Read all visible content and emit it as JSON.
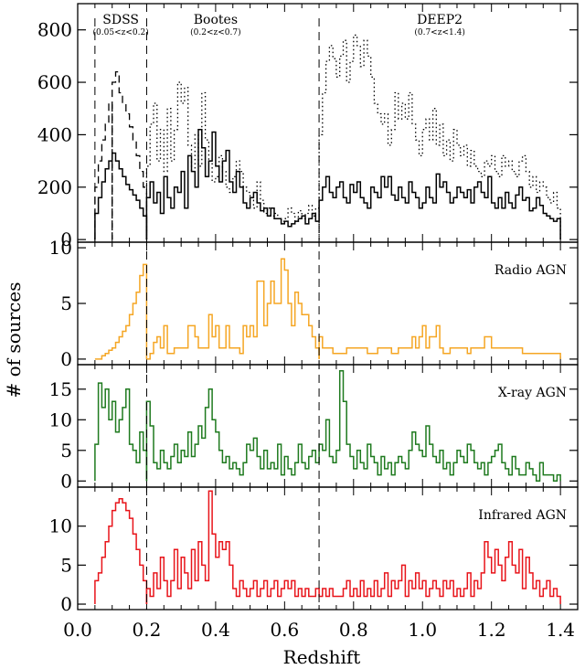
{
  "chart_data": {
    "type": "histogram-stack",
    "xlabel": "Redshift",
    "ylabel": "# of sources",
    "x_range": [
      0.0,
      1.45
    ],
    "x_ticks": [
      "0.0",
      "0.2",
      "0.4",
      "0.6",
      "0.8",
      "1.0",
      "1.2",
      "1.4"
    ],
    "x_tick_values": [
      0.0,
      0.2,
      0.4,
      0.6,
      0.8,
      1.0,
      1.2,
      1.4
    ],
    "bin_width": 0.01,
    "dividers": [
      0.2,
      0.7
    ],
    "regions": [
      {
        "name": "SDSS",
        "range": "(0.05<z<0.2)",
        "x_center": 0.125
      },
      {
        "name": "Bootes",
        "range": "(0.2<z<0.7)",
        "x_center": 0.4
      },
      {
        "name": "DEEP2",
        "range": "(0.7<z<1.4)",
        "x_center": 1.05
      }
    ],
    "panels": [
      {
        "id": "all",
        "label": "",
        "ylim": [
          -10,
          900
        ],
        "y_ticks": [
          0,
          200,
          400,
          600,
          800
        ],
        "series": [
          {
            "style": "dashed",
            "color": "#000000",
            "bins": [
              {
                "x0": 0.05,
                "x1": 0.1,
                "v": [
                  200,
                  300,
                  380,
                  440,
                  520
                ]
              },
              {
                "x0": 0.1,
                "x1": 0.2,
                "v": [
                  600,
                  640,
                  560,
                  520,
                  480,
                  430,
                  380,
                  320,
                  260,
                  200
                ]
              }
            ]
          },
          {
            "style": "dotted",
            "color": "#000000",
            "bins": [
              {
                "x0": 0.2,
                "x1": 0.7,
                "v": [
                  280,
                  440,
                  520,
                  300,
                  420,
                  260,
                  500,
                  300,
                  420,
                  600,
                  520,
                  580,
                  360,
                  260,
                  400,
                  280,
                  560,
                  380,
                  300,
                  220,
                  240,
                  320,
                  260,
                  200,
                  180,
                  240,
                  300,
                  260,
                  200,
                  180,
                  150,
                  120,
                  220,
                  150,
                  100,
                  120,
                  90,
                  100,
                  80,
                  70,
                  80,
                  120,
                  100,
                  70,
                  110,
                  80,
                  100,
                  130,
                  90,
                  120
                ]
              },
              {
                "x0": 0.7,
                "x1": 1.4,
                "v": [
                  400,
                  560,
                  680,
                  740,
                  690,
                  620,
                  700,
                  760,
                  600,
                  680,
                  780,
                  740,
                  660,
                  760,
                  700,
                  620,
                  520,
                  480,
                  440,
                  480,
                  360,
                  420,
                  560,
                  460,
                  520,
                  460,
                  560,
                  440,
                  380,
                  320,
                  420,
                  460,
                  380,
                  500,
                  360,
                  440,
                  320,
                  380,
                  300,
                  420,
                  360,
                  320,
                  360,
                  280,
                  340,
                  280,
                  260,
                  240,
                  300,
                  280,
                  320,
                  260,
                  240,
                  320,
                  280,
                  300,
                  260,
                  240,
                  300,
                  320,
                  260,
                  200,
                  240,
                  180,
                  220,
                  200,
                  160,
                  140,
                  180,
                  120
                ]
              }
            ]
          },
          {
            "style": "solid",
            "color": "#000000",
            "bins": [
              {
                "x0": 0.05,
                "x1": 0.2,
                "v": [
                  100,
                  160,
                  220,
                  270,
                  300,
                  330,
                  300,
                  270,
                  240,
                  210,
                  190,
                  170,
                  150,
                  120,
                  90
                ]
              },
              {
                "x0": 0.2,
                "x1": 1.4,
                "v": [
                  160,
                  220,
                  140,
                  180,
                  100,
                  240,
                  160,
                  120,
                  200,
                  180,
                  260,
                  120,
                  320,
                  260,
                  200,
                  420,
                  350,
                  240,
                  300,
                  410,
                  280,
                  220,
                  300,
                  340,
                  220,
                  180,
                  260,
                  200,
                  140,
                  120,
                  160,
                  180,
                  140,
                  110,
                  120,
                  90,
                  120,
                  80,
                  80,
                  60,
                  70,
                  50,
                  60,
                  70,
                  80,
                  90,
                  60,
                  80,
                  100,
                  70,
                  150,
                  200,
                  240,
                  180,
                  160,
                  200,
                  220,
                  160,
                  140,
                  210,
                  180,
                  220,
                  160,
                  140,
                  120,
                  200,
                  180,
                  160,
                  240,
                  200,
                  240,
                  170,
                  150,
                  200,
                  160,
                  140,
                  220,
                  180,
                  160,
                  120,
                  140,
                  200,
                  160,
                  140,
                  250,
                  200,
                  220,
                  180,
                  140,
                  160,
                  200,
                  180,
                  160,
                  190,
                  140,
                  200,
                  220,
                  180,
                  160,
                  240,
                  140,
                  120,
                  160,
                  120,
                  180,
                  140,
                  120,
                  170,
                  200,
                  150,
                  160,
                  110,
                  120,
                  160,
                  130,
                  100,
                  90,
                  80,
                  70,
                  80
                ]
              }
            ]
          }
        ]
      },
      {
        "id": "radio",
        "label": "Radio AGN",
        "ylim": [
          -0.5,
          10.5
        ],
        "y_ticks": [
          0,
          5,
          10
        ],
        "series": [
          {
            "style": "solid",
            "color": "#f5a623",
            "bins": [
              {
                "x0": 0.05,
                "x1": 0.2,
                "v": [
                  0,
                  0,
                  0.3,
                  0.5,
                  0.8,
                  1,
                  1.5,
                  2,
                  2.5,
                  3,
                  4,
                  5,
                  6,
                  7.5,
                  8.5
                ]
              },
              {
                "x0": 0.2,
                "x1": 0.7,
                "v": [
                  0,
                  0.5,
                  1.5,
                  2,
                  1,
                  3,
                  0.5,
                  0.5,
                  1,
                  1,
                  1,
                  1,
                  3,
                  3,
                  2,
                  1,
                  1,
                  1,
                  4,
                  2,
                  3,
                  1,
                  1,
                  3,
                  1,
                  1,
                  1,
                  0.5,
                  3,
                  2,
                  3,
                  2,
                  7,
                  7,
                  3,
                  5,
                  7,
                  5,
                  5,
                  9,
                  8,
                  5,
                  3,
                  6,
                  5,
                  4,
                  4,
                  3,
                  2,
                  1
                ]
              },
              {
                "x0": 0.7,
                "x1": 1.4,
                "v": [
                  2,
                  1,
                  1,
                  1,
                  0.5,
                  0.5,
                  0.5,
                  0.5,
                  1,
                  1,
                  1,
                  1,
                  1,
                  1,
                  0.5,
                  0.5,
                  0.5,
                  1,
                  1,
                  1,
                  1,
                  0.5,
                  0.5,
                  1,
                  1,
                  1,
                  1,
                  2,
                  1,
                  2,
                  3,
                  1,
                  2,
                  2,
                  3,
                  1,
                  0.5,
                  0.5,
                  1,
                  1,
                  1,
                  1,
                  1,
                  0.5,
                  1,
                  1,
                  1,
                  1,
                  2,
                  2,
                  1,
                  1,
                  1,
                  1,
                  1,
                  1,
                  1,
                  1,
                  1,
                  0.5,
                  0.5,
                  0.5,
                  0.5,
                  0.5,
                  0.5,
                  0.5,
                  0.5,
                  0.5,
                  0.5,
                  0.5
                ]
              }
            ]
          }
        ]
      },
      {
        "id": "xray",
        "label": "X-ray AGN",
        "ylim": [
          -1,
          19
        ],
        "y_ticks": [
          0,
          5,
          10,
          15
        ],
        "series": [
          {
            "style": "solid",
            "color": "#1e7a1e",
            "bins": [
              {
                "x0": 0.05,
                "x1": 0.2,
                "v": [
                  6,
                  16,
                  12,
                  15,
                  10,
                  13,
                  8,
                  10,
                  12,
                  15,
                  6,
                  5,
                  3,
                  8,
                  5
                ]
              },
              {
                "x0": 0.2,
                "x1": 1.4,
                "v": [
                  13,
                  9,
                  3,
                  2,
                  5,
                  3,
                  2,
                  4,
                  6,
                  3,
                  5,
                  4,
                  8,
                  4,
                  6,
                  9,
                  7,
                  12,
                  15,
                  10,
                  8,
                  5,
                  3,
                  4,
                  2,
                  3,
                  2,
                  1,
                  3,
                  6,
                  5,
                  7,
                  4,
                  2,
                  5,
                  2,
                  3,
                  2,
                  6,
                  1,
                  4,
                  2,
                  1,
                  3,
                  6,
                  3,
                  2,
                  4,
                  5,
                  3,
                  6,
                  5,
                  10,
                  4,
                  3,
                  5,
                  18,
                  13,
                  6,
                  4,
                  2,
                  5,
                  3,
                  2,
                  6,
                  4,
                  3,
                  1,
                  4,
                  2,
                  3,
                  1,
                  3,
                  4,
                  3,
                  2,
                  5,
                  8,
                  6,
                  5,
                  4,
                  9,
                  6,
                  4,
                  3,
                  5,
                  2,
                  3,
                  1,
                  3,
                  5,
                  4,
                  3,
                  6,
                  5,
                  3,
                  2,
                  3,
                  1,
                  3,
                  4,
                  5,
                  6,
                  3,
                  2,
                  1,
                  4,
                  2,
                  1,
                  1,
                  3,
                  2,
                  1,
                  0,
                  3,
                  1,
                  1,
                  1,
                  0,
                  1
                ]
              }
            ]
          }
        ]
      },
      {
        "id": "infrared",
        "label": "Infrared AGN",
        "ylim": [
          -0.7,
          15
        ],
        "y_ticks": [
          0,
          5,
          10
        ],
        "series": [
          {
            "style": "solid",
            "color": "#e8141a",
            "bins": [
              {
                "x0": 0.05,
                "x1": 0.2,
                "v": [
                  3,
                  4,
                  6,
                  8,
                  10,
                  12,
                  13,
                  13.5,
                  13,
                  12,
                  11,
                  9,
                  7,
                  5,
                  3
                ]
              },
              {
                "x0": 0.2,
                "x1": 1.4,
                "v": [
                  2,
                  1,
                  4,
                  2,
                  6,
                  3,
                  1,
                  3,
                  7,
                  2,
                  6,
                  4,
                  2,
                  7,
                  3,
                  8,
                  5,
                  3,
                  14.5,
                  9,
                  6,
                  8,
                  7,
                  8,
                  5,
                  2,
                  1,
                  3,
                  2,
                  1,
                  2,
                  3,
                  1,
                  2,
                  3,
                  1,
                  2,
                  3,
                  1,
                  2,
                  3,
                  2,
                  3,
                  1,
                  2,
                  1,
                  2,
                  1,
                  1,
                  2,
                  1,
                  2,
                  1,
                  2,
                  1,
                  1,
                  1,
                  2,
                  3,
                  1,
                  2,
                  1,
                  3,
                  1,
                  2,
                  1,
                  3,
                  1,
                  2,
                  4,
                  1,
                  3,
                  2,
                  3,
                  5,
                  1,
                  3,
                  2,
                  4,
                  2,
                  3,
                  1,
                  2,
                  3,
                  2,
                  1,
                  3,
                  2,
                  3,
                  1,
                  2,
                  1,
                  2,
                  4,
                  1,
                  3,
                  2,
                  4,
                  8,
                  6,
                  4,
                  7,
                  5,
                  3,
                  6,
                  8,
                  5,
                  4,
                  7,
                  2,
                  6,
                  4,
                  2,
                  3,
                  1,
                  2,
                  3,
                  1,
                  2,
                  1
                ]
              }
            ]
          }
        ]
      }
    ]
  }
}
